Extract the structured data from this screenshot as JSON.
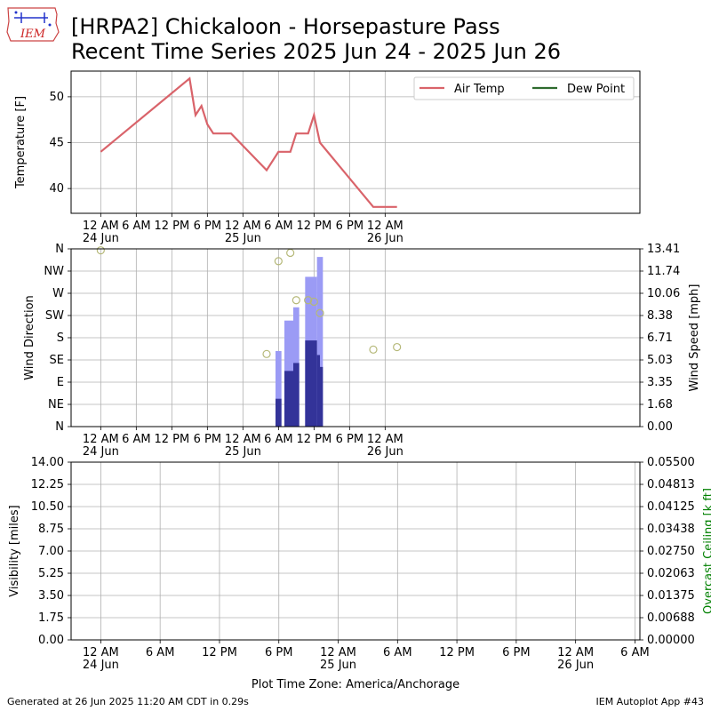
{
  "header": {
    "line1": "[HRPA2] Chickaloon - Horsepasture Pass",
    "line2": "Recent Time Series 2025 Jun 24 - 2025 Jun 26",
    "logo_text": "IEM"
  },
  "footer": {
    "generated": "Generated at 26 Jun 2025 11:20 AM CDT in 0.29s",
    "app": "IEM Autoplot App #43",
    "timezone": "Plot Time Zone: America/Anchorage"
  },
  "colors": {
    "air_temp": "#d9636a",
    "dew_point": "#2e6b2e",
    "gust_bar": "#9b9bf5",
    "speed_bar": "#333399",
    "direction_marker": "#b5b878",
    "ceiling_axis": "#008000",
    "grid": "#b0b0b0"
  },
  "chart_data": [
    {
      "type": "line",
      "name": "temperature",
      "ylabel": "Temperature [F]",
      "ylim": [
        37.3,
        52.8
      ],
      "yticks": [
        40,
        45,
        50
      ],
      "xlim": [
        -5,
        91
      ],
      "xticks": [
        {
          "x": 0,
          "label": "12 AM",
          "sub": "24 Jun"
        },
        {
          "x": 6,
          "label": "6 AM",
          "sub": ""
        },
        {
          "x": 12,
          "label": "12 PM",
          "sub": ""
        },
        {
          "x": 18,
          "label": "6 PM",
          "sub": ""
        },
        {
          "x": 24,
          "label": "12 AM",
          "sub": "25 Jun"
        },
        {
          "x": 30,
          "label": "6 AM",
          "sub": ""
        },
        {
          "x": 36,
          "label": "12 PM",
          "sub": ""
        },
        {
          "x": 42,
          "label": "6 PM",
          "sub": ""
        },
        {
          "x": 48,
          "label": "12 AM",
          "sub": "26 Jun"
        }
      ],
      "grid": true,
      "legend": {
        "placement": "top-right",
        "entries": [
          "Air Temp",
          "Dew Point"
        ]
      },
      "series": [
        {
          "name": "Air Temp",
          "x": [
            0,
            15,
            16,
            17,
            18,
            19,
            22,
            28,
            30,
            32,
            33,
            35,
            36,
            37,
            46,
            50
          ],
          "y": [
            44,
            52,
            48,
            49,
            47,
            46,
            46,
            42,
            44,
            44,
            46,
            46,
            48,
            45,
            38,
            38
          ]
        },
        {
          "name": "Dew Point",
          "x": [],
          "y": []
        }
      ]
    },
    {
      "type": "bar",
      "name": "wind",
      "ylabel": "Wind Direction",
      "y2label": "Wind Speed [mph]",
      "ylim": [
        0,
        360
      ],
      "yticks": [
        {
          "v": 0,
          "label": "N"
        },
        {
          "v": 45,
          "label": "NE"
        },
        {
          "v": 90,
          "label": "E"
        },
        {
          "v": 135,
          "label": "SE"
        },
        {
          "v": 180,
          "label": "S"
        },
        {
          "v": 225,
          "label": "SW"
        },
        {
          "v": 270,
          "label": "W"
        },
        {
          "v": 315,
          "label": "NW"
        },
        {
          "v": 360,
          "label": "N"
        }
      ],
      "y2lim": [
        0,
        13.41
      ],
      "y2ticks": [
        "0.00",
        "1.68",
        "3.35",
        "5.03",
        "6.71",
        "8.38",
        "10.06",
        "11.74",
        "13.41"
      ],
      "xlim": [
        -5,
        91
      ],
      "xticks": [
        0,
        6,
        12,
        18,
        24,
        30,
        36,
        42,
        48
      ],
      "grid": true,
      "gust_bars": [
        {
          "x0": 29.5,
          "x1": 30.5,
          "value": 5.7
        },
        {
          "x0": 31.0,
          "x1": 32.5,
          "value": 8.0
        },
        {
          "x0": 32.5,
          "x1": 33.5,
          "value": 9.0
        },
        {
          "x0": 34.5,
          "x1": 36.5,
          "value": 11.3
        },
        {
          "x0": 36.5,
          "x1": 37.5,
          "value": 12.8
        }
      ],
      "speed_bars": [
        {
          "x0": 29.5,
          "x1": 30.5,
          "value": 2.1
        },
        {
          "x0": 31.0,
          "x1": 32.5,
          "value": 4.2
        },
        {
          "x0": 32.5,
          "x1": 33.5,
          "value": 4.8
        },
        {
          "x0": 34.5,
          "x1": 36.5,
          "value": 6.5
        },
        {
          "x0": 36.5,
          "x1": 37.0,
          "value": 5.4
        },
        {
          "x0": 37.0,
          "x1": 37.5,
          "value": 4.5
        }
      ],
      "directions": [
        {
          "x": 0,
          "deg": 357
        },
        {
          "x": 28,
          "deg": 147
        },
        {
          "x": 30,
          "deg": 335
        },
        {
          "x": 32,
          "deg": 352
        },
        {
          "x": 33,
          "deg": 256
        },
        {
          "x": 35,
          "deg": 256
        },
        {
          "x": 36,
          "deg": 253
        },
        {
          "x": 37,
          "deg": 230
        },
        {
          "x": 46,
          "deg": 156
        },
        {
          "x": 50,
          "deg": 161
        }
      ]
    },
    {
      "type": "line",
      "name": "visibility",
      "ylabel": "Visibility [miles]",
      "y2label": "Overcast Ceiling [k ft]",
      "ylim": [
        0,
        14
      ],
      "yticks": [
        "0.00",
        "1.75",
        "3.50",
        "5.25",
        "7.00",
        "8.75",
        "10.50",
        "12.25",
        "14.00"
      ],
      "y2lim": [
        0,
        0.055
      ],
      "y2ticks": [
        "0.00000",
        "0.00688",
        "0.01375",
        "0.02063",
        "0.02750",
        "0.03438",
        "0.04125",
        "0.04813",
        "0.05500"
      ],
      "xlim": [
        -3,
        54.5
      ],
      "xticks": [
        {
          "x": 0,
          "label": "12 AM",
          "sub": "24 Jun"
        },
        {
          "x": 6,
          "label": "6 AM",
          "sub": ""
        },
        {
          "x": 12,
          "label": "12 PM",
          "sub": ""
        },
        {
          "x": 18,
          "label": "6 PM",
          "sub": ""
        },
        {
          "x": 24,
          "label": "12 AM",
          "sub": "25 Jun"
        },
        {
          "x": 30,
          "label": "6 AM",
          "sub": ""
        },
        {
          "x": 36,
          "label": "12 PM",
          "sub": ""
        },
        {
          "x": 42,
          "label": "6 PM",
          "sub": ""
        },
        {
          "x": 48,
          "label": "12 AM",
          "sub": "26 Jun"
        },
        {
          "x": 54,
          "label": "6 AM",
          "sub": ""
        }
      ],
      "xlabel": "Plot Time Zone: America/Anchorage",
      "grid": true,
      "series": []
    }
  ]
}
